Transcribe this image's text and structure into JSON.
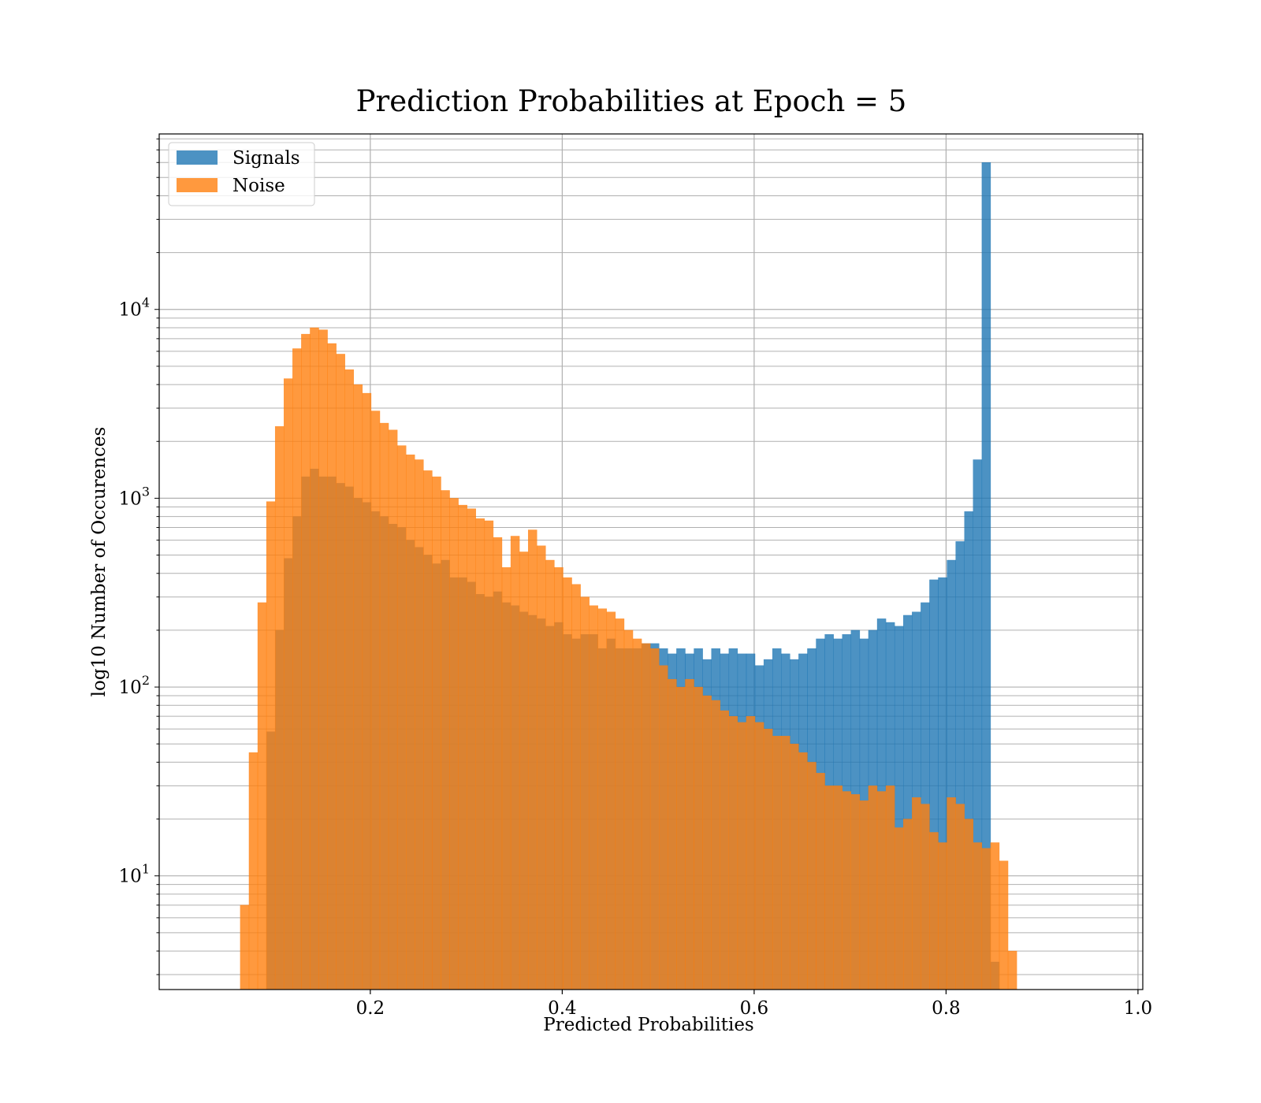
{
  "chart_data": {
    "type": "bar",
    "title": "Prediction Probabilities at Epoch = 5",
    "xlabel": "Predicted Probabilities",
    "ylabel": "log10 Number of Occurences",
    "xlim": [
      -0.02,
      1.005
    ],
    "ylim": [
      2.5,
      85000
    ],
    "y_scale": "log",
    "grid": true,
    "grid_minor_y": true,
    "legend_placement": "top-left",
    "x_ticks": [
      0.2,
      0.4,
      0.6,
      0.8,
      1.0
    ],
    "x_tick_labels": [
      "0.2",
      "0.4",
      "0.6",
      "0.8",
      "1.0"
    ],
    "y_ticks": [
      10,
      100,
      1000,
      10000
    ],
    "y_tick_labels": [
      {
        "base": "10",
        "exp": "1"
      },
      {
        "base": "10",
        "exp": "2"
      },
      {
        "base": "10",
        "exp": "3"
      },
      {
        "base": "10",
        "exp": "4"
      }
    ],
    "series": [
      {
        "name": "Signals",
        "color": "#1f77b4",
        "opacity": 0.8,
        "bin_start": 0.0918,
        "bin_width": 0.009092,
        "values": [
          58,
          200,
          480,
          800,
          1300,
          1430,
          1300,
          1300,
          1200,
          1150,
          1000,
          950,
          850,
          800,
          730,
          700,
          600,
          550,
          500,
          450,
          470,
          380,
          380,
          360,
          310,
          300,
          320,
          280,
          270,
          250,
          240,
          230,
          210,
          220,
          190,
          180,
          190,
          190,
          160,
          180,
          160,
          160,
          160,
          170,
          170,
          160,
          150,
          160,
          150,
          160,
          140,
          160,
          150,
          160,
          150,
          150,
          130,
          140,
          160,
          150,
          140,
          150,
          160,
          180,
          190,
          180,
          190,
          200,
          180,
          200,
          230,
          220,
          210,
          240,
          250,
          280,
          370,
          380,
          470,
          590,
          850,
          1600,
          60000,
          3.5
        ]
      },
      {
        "name": "Noise",
        "color": "#ff7f0e",
        "opacity": 0.8,
        "bin_start": 0.0645,
        "bin_width": 0.009092,
        "values": [
          7,
          45,
          280,
          960,
          2400,
          4300,
          6200,
          7400,
          8000,
          7800,
          6600,
          5800,
          4800,
          4000,
          3600,
          2900,
          2500,
          2300,
          1900,
          1700,
          1600,
          1400,
          1300,
          1100,
          1000,
          920,
          880,
          780,
          760,
          620,
          430,
          630,
          520,
          680,
          560,
          470,
          430,
          380,
          350,
          300,
          270,
          260,
          250,
          230,
          200,
          180,
          170,
          160,
          130,
          110,
          100,
          110,
          100,
          90,
          85,
          75,
          70,
          65,
          70,
          65,
          60,
          55,
          55,
          50,
          45,
          40,
          35,
          30,
          30,
          28,
          27,
          25,
          30,
          28,
          30,
          18,
          20,
          26,
          24,
          17,
          15,
          26,
          24,
          20,
          15,
          14,
          15,
          12,
          4
        ]
      }
    ]
  }
}
